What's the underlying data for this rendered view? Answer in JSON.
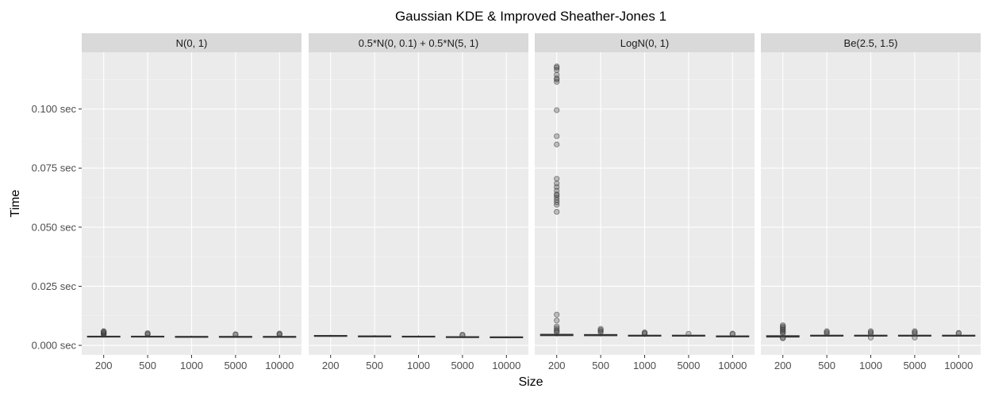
{
  "chart_data": {
    "type": "boxplot",
    "title": "Gaussian KDE & Improved Sheather-Jones 1",
    "xlabel": "Size",
    "ylabel": "Time",
    "categories": [
      "200",
      "500",
      "1000",
      "5000",
      "10000"
    ],
    "y_ticks": [
      {
        "value": 0.0,
        "label": "0.000 sec"
      },
      {
        "value": 0.025,
        "label": "0.025 sec"
      },
      {
        "value": 0.05,
        "label": "0.050 sec"
      },
      {
        "value": 0.075,
        "label": "0.075 sec"
      },
      {
        "value": 0.1,
        "label": "0.100 sec"
      }
    ],
    "ylim": [
      -0.004,
      0.124
    ],
    "grid": true,
    "facets": [
      {
        "label": "N(0, 1)",
        "boxes": [
          {
            "median": 0.0037,
            "q1": 0.0035,
            "q3": 0.0039,
            "lo": 0.0033,
            "hi": 0.0043,
            "outliers": [
              0.0045,
              0.0048,
              0.005,
              0.0052,
              0.0055,
              0.0058,
              0.006
            ]
          },
          {
            "median": 0.0037,
            "q1": 0.0035,
            "q3": 0.0039,
            "lo": 0.0033,
            "hi": 0.0043,
            "outliers": [
              0.0046,
              0.0049,
              0.0052
            ]
          },
          {
            "median": 0.0036,
            "q1": 0.0034,
            "q3": 0.0038,
            "lo": 0.0032,
            "hi": 0.0041,
            "outliers": []
          },
          {
            "median": 0.0036,
            "q1": 0.0034,
            "q3": 0.0038,
            "lo": 0.0032,
            "hi": 0.0042,
            "outliers": [
              0.0045,
              0.0047
            ]
          },
          {
            "median": 0.0036,
            "q1": 0.0034,
            "q3": 0.0038,
            "lo": 0.0032,
            "hi": 0.0042,
            "outliers": [
              0.0045,
              0.0048,
              0.005
            ]
          }
        ]
      },
      {
        "label": "0.5*N(0, 0.1) + 0.5*N(5, 1)",
        "boxes": [
          {
            "median": 0.004,
            "q1": 0.0038,
            "q3": 0.0042,
            "lo": 0.0036,
            "hi": 0.0045,
            "outliers": []
          },
          {
            "median": 0.0038,
            "q1": 0.0036,
            "q3": 0.004,
            "lo": 0.0034,
            "hi": 0.0043,
            "outliers": []
          },
          {
            "median": 0.0037,
            "q1": 0.0035,
            "q3": 0.0039,
            "lo": 0.0033,
            "hi": 0.0042,
            "outliers": []
          },
          {
            "median": 0.0035,
            "q1": 0.0033,
            "q3": 0.0037,
            "lo": 0.0031,
            "hi": 0.004,
            "outliers": [
              0.0043,
              0.0045
            ]
          },
          {
            "median": 0.0034,
            "q1": 0.0032,
            "q3": 0.0036,
            "lo": 0.003,
            "hi": 0.0038,
            "outliers": []
          }
        ]
      },
      {
        "label": "LogN(0, 1)",
        "boxes": [
          {
            "median": 0.0044,
            "q1": 0.0041,
            "q3": 0.0047,
            "lo": 0.0038,
            "hi": 0.0052,
            "outliers": [
              0.0055,
              0.006,
              0.0065,
              0.0072,
              0.008,
              0.0105,
              0.013,
              0.0565,
              0.0595,
              0.0605,
              0.0615,
              0.0625,
              0.0635,
              0.064,
              0.0655,
              0.067,
              0.0685,
              0.0705,
              0.085,
              0.0885,
              0.0995,
              0.1115,
              0.1125,
              0.113,
              0.1145,
              0.1165,
              0.1175,
              0.118
            ]
          },
          {
            "median": 0.0043,
            "q1": 0.0041,
            "q3": 0.0046,
            "lo": 0.0038,
            "hi": 0.0051,
            "outliers": [
              0.0055,
              0.006,
              0.0065,
              0.007
            ]
          },
          {
            "median": 0.0041,
            "q1": 0.0039,
            "q3": 0.0043,
            "lo": 0.0036,
            "hi": 0.0046,
            "outliers": [
              0.0049,
              0.0052,
              0.0055
            ]
          },
          {
            "median": 0.0041,
            "q1": 0.0039,
            "q3": 0.0043,
            "lo": 0.0036,
            "hi": 0.0046,
            "outliers": [
              0.0049
            ]
          },
          {
            "median": 0.0038,
            "q1": 0.0036,
            "q3": 0.004,
            "lo": 0.0034,
            "hi": 0.0044,
            "outliers": [
              0.0047,
              0.005
            ]
          }
        ]
      },
      {
        "label": "Be(2.5, 1.5)",
        "boxes": [
          {
            "median": 0.0038,
            "q1": 0.0035,
            "q3": 0.0041,
            "lo": 0.0033,
            "hi": 0.0046,
            "outliers": [
              0.003,
              0.0032,
              0.005,
              0.0055,
              0.006,
              0.0065,
              0.007,
              0.0075,
              0.008,
              0.0085
            ]
          },
          {
            "median": 0.0041,
            "q1": 0.0039,
            "q3": 0.0043,
            "lo": 0.0037,
            "hi": 0.0046,
            "outliers": [
              0.005,
              0.0055,
              0.006
            ]
          },
          {
            "median": 0.0041,
            "q1": 0.0039,
            "q3": 0.0043,
            "lo": 0.0037,
            "hi": 0.0046,
            "outliers": [
              0.0033,
              0.005,
              0.0055,
              0.006
            ]
          },
          {
            "median": 0.0041,
            "q1": 0.0039,
            "q3": 0.0043,
            "lo": 0.0037,
            "hi": 0.0046,
            "outliers": [
              0.0033,
              0.005,
              0.0055,
              0.006
            ]
          },
          {
            "median": 0.0041,
            "q1": 0.0039,
            "q3": 0.0043,
            "lo": 0.0037,
            "hi": 0.0046,
            "outliers": [
              0.005,
              0.0053
            ]
          }
        ]
      }
    ]
  }
}
